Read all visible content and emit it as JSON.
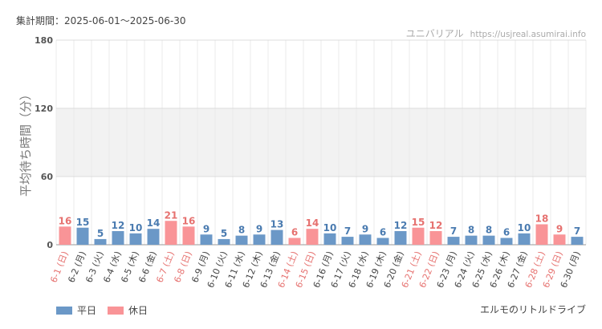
{
  "period_text": "集計期間：2025-06-01～2025-06-30",
  "site_name": "ユニバリアル",
  "site_url": "https://usjreal.asumirai.info",
  "attraction_name": "エルモのリトルドライブ",
  "colors": {
    "weekday": "#6b98c7",
    "holiday": "#f99497",
    "holiday_label": "#e6716f",
    "weekday_label": "#4a7bb0"
  },
  "legend": [
    {
      "label": "平日",
      "color": "#6b98c7"
    },
    {
      "label": "休日",
      "color": "#f99497"
    }
  ],
  "chart_data": {
    "type": "bar",
    "ylabel": "平均待ち時間（分）",
    "ylim": [
      0,
      180
    ],
    "yticks": [
      0,
      60,
      120,
      180
    ],
    "grid": true,
    "legend_position": "bottom-left",
    "categories": [
      "6-1 (日)",
      "6-2 (月)",
      "6-3 (火)",
      "6-4 (水)",
      "6-5 (木)",
      "6-6 (金)",
      "6-7 (土)",
      "6-8 (日)",
      "6-9 (月)",
      "6-10 (火)",
      "6-11 (水)",
      "6-12 (木)",
      "6-13 (金)",
      "6-14 (土)",
      "6-15 (日)",
      "6-16 (月)",
      "6-17 (火)",
      "6-18 (水)",
      "6-19 (木)",
      "6-20 (金)",
      "6-21 (土)",
      "6-22 (日)",
      "6-23 (月)",
      "6-24 (火)",
      "6-25 (水)",
      "6-26 (木)",
      "6-27 (金)",
      "6-28 (土)",
      "6-29 (日)",
      "6-30 (月)"
    ],
    "values": [
      16,
      15,
      5,
      12,
      10,
      14,
      21,
      16,
      9,
      5,
      8,
      9,
      13,
      6,
      14,
      10,
      7,
      9,
      6,
      12,
      15,
      12,
      7,
      8,
      8,
      6,
      10,
      18,
      9,
      7
    ],
    "holiday": [
      true,
      false,
      false,
      false,
      false,
      false,
      true,
      true,
      false,
      false,
      false,
      false,
      false,
      true,
      true,
      false,
      false,
      false,
      false,
      false,
      true,
      true,
      false,
      false,
      false,
      false,
      false,
      true,
      true,
      false
    ]
  }
}
